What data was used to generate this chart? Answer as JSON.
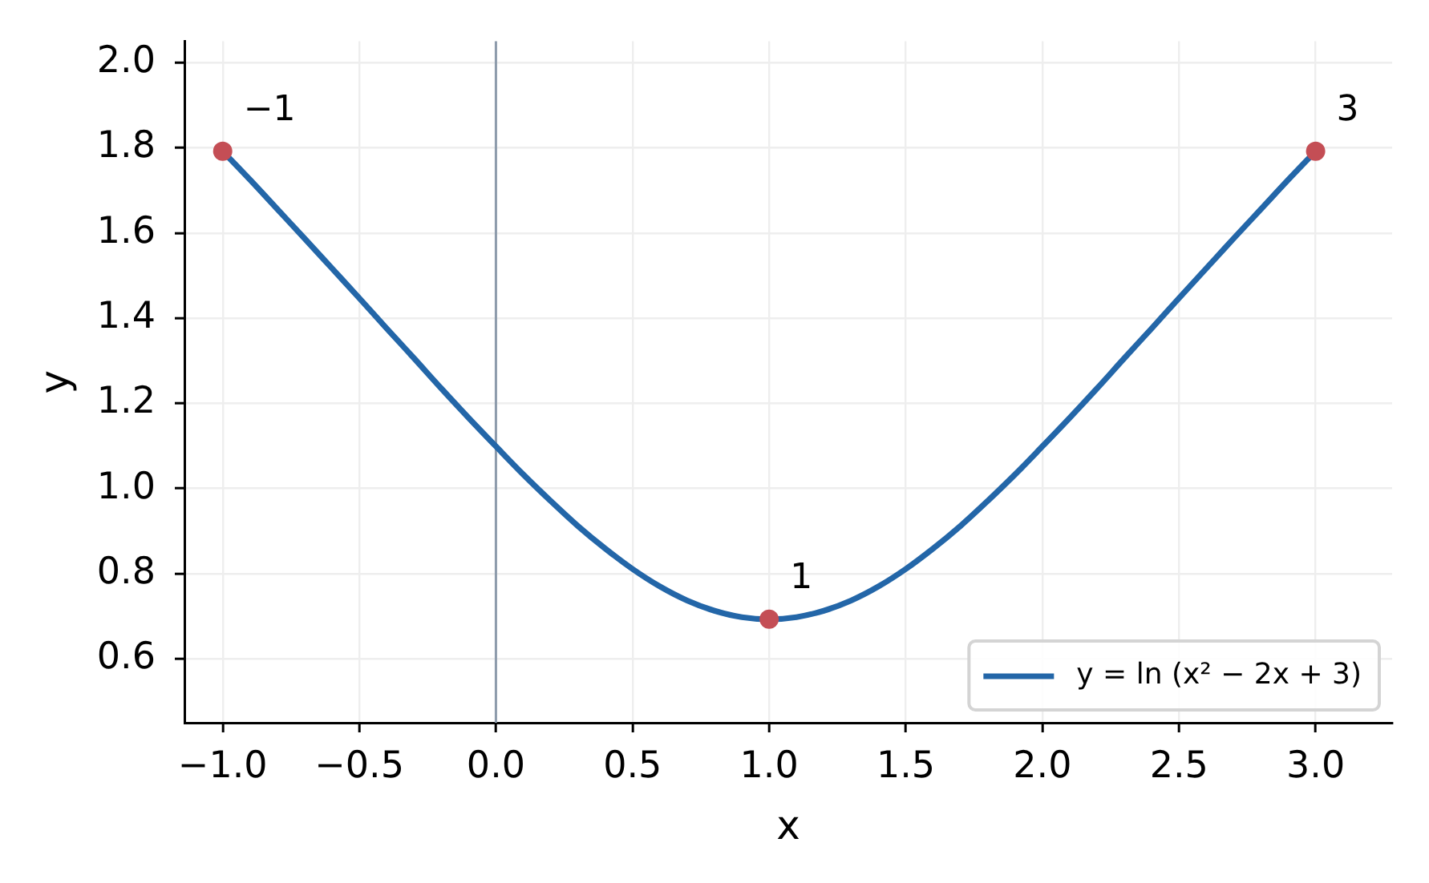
{
  "chart_data": {
    "type": "line",
    "xlabel": "x",
    "ylabel": "y",
    "xlim": [
      -1.14,
      3.28
    ],
    "xticks": [
      {
        "value": -1,
        "label": "−1.0"
      },
      {
        "value": -0.5,
        "label": "−0.5"
      },
      {
        "value": 0,
        "label": "0.0"
      },
      0.5,
      {
        "value": 1,
        "label": "1.0"
      },
      1.5,
      {
        "value": 2,
        "label": "2.0"
      },
      2.5,
      {
        "value": 3,
        "label": "3.0"
      }
    ],
    "ylim": [
      0.45,
      2.05
    ],
    "yticks": [
      0.6,
      0.8,
      {
        "value": 1,
        "label": "1.0"
      },
      1.2,
      1.4,
      1.6,
      1.8,
      {
        "value": 2,
        "label": "2.0"
      }
    ],
    "grid": true,
    "legend": "bottom right",
    "ref_lines": [
      {
        "axis": "x",
        "value": 0,
        "color": "#8d9bab"
      }
    ],
    "annotations": [
      {
        "text": "−1",
        "x": -1,
        "y": 1.792
      },
      {
        "text": "1",
        "x": 1,
        "y": 0.693
      },
      {
        "text": "3",
        "x": 3,
        "y": 1.792
      }
    ],
    "series": [
      {
        "name": "y = ln (x² − 2x + 3)",
        "color": "#2366a8",
        "marker": "none",
        "x": [
          -1,
          -0.9,
          -0.8,
          -0.7,
          -0.6,
          -0.5,
          -0.4,
          -0.3,
          -0.2,
          -0.1,
          0,
          0.1,
          0.2,
          0.3,
          0.4,
          0.5,
          0.6,
          0.7,
          0.8,
          0.9,
          1,
          1.1,
          1.2,
          1.3,
          1.4,
          1.5,
          1.6,
          1.7,
          1.8,
          1.9,
          2,
          2.1,
          2.2,
          2.3,
          2.4,
          2.5,
          2.6,
          2.7,
          2.8,
          2.9,
          3
        ],
        "values": [
          1.792,
          1.725,
          1.656,
          1.587,
          1.517,
          1.447,
          1.376,
          1.306,
          1.235,
          1.166,
          1.099,
          1.033,
          0.971,
          0.912,
          0.859,
          0.811,
          0.77,
          0.737,
          0.713,
          0.698,
          0.693,
          0.698,
          0.713,
          0.737,
          0.77,
          0.811,
          0.859,
          0.912,
          0.971,
          1.033,
          1.099,
          1.166,
          1.235,
          1.306,
          1.376,
          1.447,
          1.517,
          1.587,
          1.656,
          1.725,
          1.792
        ]
      },
      {
        "type": "scatter",
        "color": "#c44e55",
        "marker": "circle",
        "x": [
          -1,
          1,
          3
        ],
        "values": [
          1.792,
          0.693,
          1.792
        ]
      }
    ]
  }
}
